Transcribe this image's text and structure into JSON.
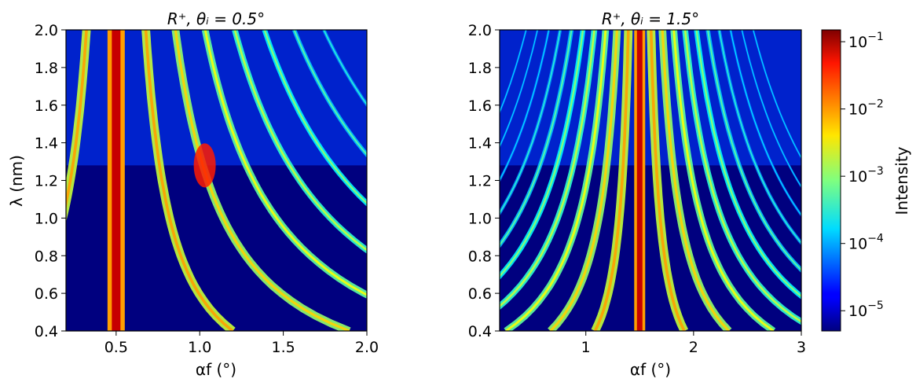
{
  "chart_data": [
    {
      "type": "heatmap",
      "title": "R⁺, θᵢ = 0.5°",
      "xlabel": "αf (°)",
      "ylabel": "λ (nm)",
      "xlim": [
        0.2,
        2.0
      ],
      "ylim": [
        0.4,
        2.0
      ],
      "xticks": [
        0.5,
        1.0,
        1.5,
        2.0
      ],
      "xtick_labels": [
        "0.5",
        "1.0",
        "1.5",
        "2.0"
      ],
      "yticks": [
        0.4,
        0.6,
        0.8,
        1.0,
        1.2,
        1.4,
        1.6,
        1.8,
        2.0
      ],
      "ytick_labels": [
        "0.4",
        "0.6",
        "0.8",
        "1.0",
        "1.2",
        "1.4",
        "1.6",
        "1.8",
        "2.0"
      ],
      "theta_i_deg": 0.5,
      "features": {
        "specular_line_alpha_f": 0.5,
        "peak_intensity_region": {
          "alpha_f": [
            0.48,
            0.53
          ],
          "lambda_nm": [
            1.1,
            2.0
          ]
        },
        "hotspot": {
          "alpha_f": 1.03,
          "lambda_nm": 1.28,
          "intensity": "high"
        },
        "bragg_sheet_count": 7
      },
      "grid": false
    },
    {
      "type": "heatmap",
      "title": "R⁺, θᵢ = 1.5°",
      "xlabel": "αf (°)",
      "ylabel": "",
      "xlim": [
        0.2,
        3.0
      ],
      "ylim": [
        0.4,
        2.0
      ],
      "xticks": [
        1,
        2,
        3
      ],
      "xtick_labels": [
        "1",
        "2",
        "3"
      ],
      "yticks": [
        0.4,
        0.6,
        0.8,
        1.0,
        1.2,
        1.4,
        1.6,
        1.8,
        2.0
      ],
      "ytick_labels": [
        "0.4",
        "0.6",
        "0.8",
        "1.0",
        "1.2",
        "1.4",
        "1.6",
        "1.8",
        "2.0"
      ],
      "theta_i_deg": 1.5,
      "features": {
        "specular_line_alpha_f": 1.5,
        "bragg_sheet_count": 10
      },
      "grid": false
    }
  ],
  "colorbar": {
    "label": "Intensity",
    "scale": "log",
    "range": [
      5e-06,
      0.15
    ],
    "colormap": "jet",
    "ticks": [
      1e-05,
      0.0001,
      0.001,
      0.01,
      0.1
    ],
    "tick_mantissa": "10",
    "tick_exponents": [
      "−5",
      "−4",
      "−3",
      "−2",
      "−1"
    ]
  },
  "colors": {
    "jet_low": "#00007f",
    "jet_mid": "#7fff7f",
    "jet_high": "#7f0000"
  }
}
